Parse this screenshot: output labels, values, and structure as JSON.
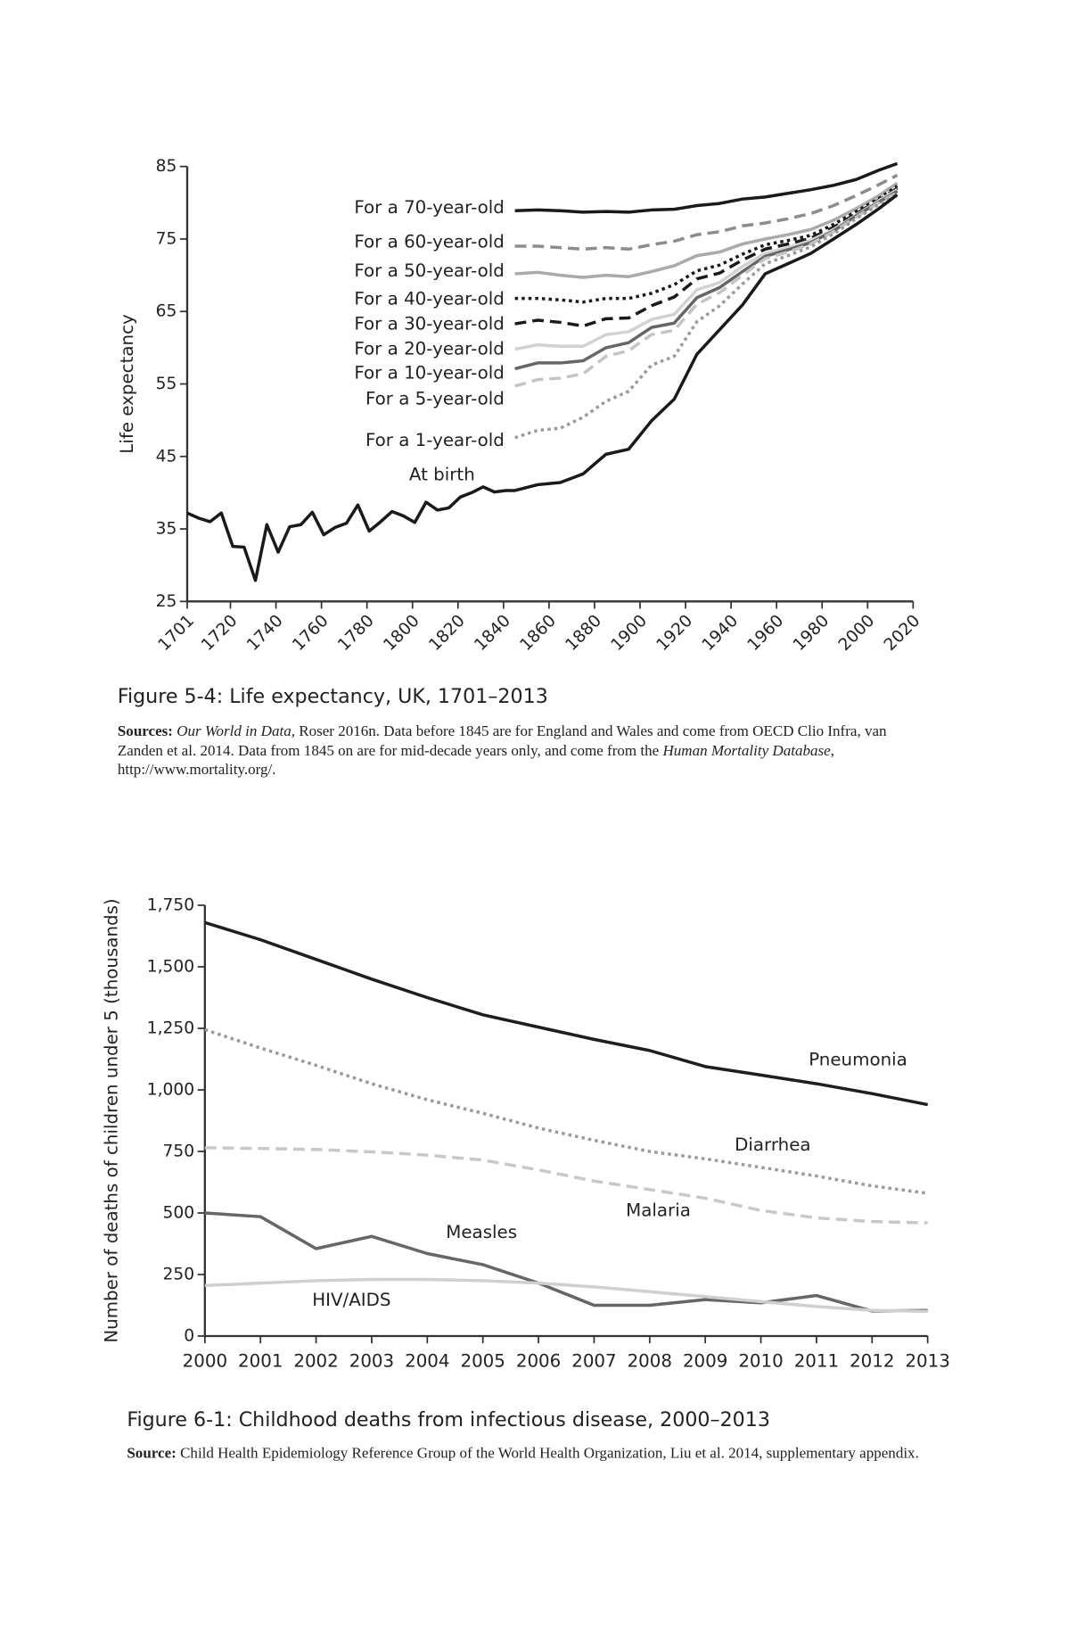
{
  "chart_data": [
    {
      "type": "line",
      "caption": "Figure 5-4: Life expectancy, UK, 1701–2013",
      "notes": [
        {
          "text": "Sources:",
          "bold": true
        },
        {
          "text": " Our World in Data,",
          "italic": true
        },
        {
          "text": " Roser 2016n. Data before 1845 are for England and Wales and come from OECD Clio Infra, van Zanden et al. 2014. Data from 1845 on are for mid-decade years only, and come from the "
        },
        {
          "text": "Human Mortality Database",
          "italic": true
        },
        {
          "text": ", http://www.mortality.org/."
        }
      ],
      "ylabel": "Life expectancy",
      "xlim": [
        1701,
        2020
      ],
      "xticks": [
        1701,
        1720,
        1740,
        1760,
        1780,
        1800,
        1820,
        1840,
        1860,
        1880,
        1900,
        1920,
        1940,
        1960,
        1980,
        2000,
        2020
      ],
      "ylim": [
        25,
        85
      ],
      "yticks": [
        25,
        35,
        45,
        55,
        65,
        75,
        85
      ],
      "series": [
        {
          "name": "For a 70-year-old",
          "color": "#1a1a1a",
          "dash": "solid",
          "x": [
            1845,
            1855,
            1865,
            1875,
            1885,
            1895,
            1905,
            1915,
            1925,
            1935,
            1945,
            1955,
            1965,
            1975,
            1985,
            1995,
            2005,
            2013
          ],
          "values": [
            78.9,
            79.0,
            78.9,
            78.7,
            78.8,
            78.7,
            79.0,
            79.1,
            79.6,
            79.9,
            80.5,
            80.8,
            81.3,
            81.8,
            82.4,
            83.2,
            84.5,
            85.4
          ]
        },
        {
          "name": "For a 60-year-old",
          "color": "#8c8c8c",
          "dash": "dashed",
          "x": [
            1845,
            1855,
            1865,
            1875,
            1885,
            1895,
            1905,
            1915,
            1925,
            1935,
            1945,
            1955,
            1965,
            1975,
            1985,
            1995,
            2005,
            2013
          ],
          "values": [
            74.0,
            74.0,
            73.8,
            73.6,
            73.8,
            73.6,
            74.2,
            74.7,
            75.6,
            76.0,
            76.8,
            77.2,
            77.8,
            78.5,
            79.6,
            81.0,
            82.5,
            83.8
          ]
        },
        {
          "name": "For a 50-year-old",
          "color": "#aaaaaa",
          "dash": "solid",
          "x": [
            1845,
            1855,
            1865,
            1875,
            1885,
            1895,
            1905,
            1915,
            1925,
            1935,
            1945,
            1955,
            1965,
            1975,
            1985,
            1995,
            2005,
            2013
          ],
          "values": [
            70.2,
            70.4,
            70.0,
            69.7,
            70.0,
            69.8,
            70.5,
            71.3,
            72.7,
            73.2,
            74.3,
            75.0,
            75.6,
            76.3,
            77.6,
            79.2,
            81.0,
            82.7
          ]
        },
        {
          "name": "For a 40-year-old",
          "color": "#1a1a1a",
          "dash": "dotted",
          "x": [
            1845,
            1855,
            1865,
            1875,
            1885,
            1895,
            1905,
            1915,
            1925,
            1935,
            1945,
            1955,
            1965,
            1975,
            1985,
            1995,
            2005,
            2013
          ],
          "values": [
            66.8,
            66.8,
            66.6,
            66.3,
            66.8,
            66.8,
            67.5,
            68.7,
            70.6,
            71.4,
            72.9,
            74.2,
            74.8,
            75.5,
            77.0,
            78.8,
            80.6,
            82.3
          ]
        },
        {
          "name": "For a 30-year-old",
          "color": "#1a1a1a",
          "dash": "dashed",
          "x": [
            1845,
            1855,
            1865,
            1875,
            1885,
            1895,
            1905,
            1915,
            1925,
            1935,
            1945,
            1955,
            1965,
            1975,
            1985,
            1995,
            2005,
            2013
          ],
          "values": [
            63.3,
            63.8,
            63.5,
            63.0,
            64.0,
            64.1,
            65.8,
            67.0,
            69.5,
            70.3,
            72.1,
            73.6,
            74.3,
            75.1,
            76.6,
            78.5,
            80.4,
            82.0
          ]
        },
        {
          "name": "For a 20-year-old",
          "color": "#d2d2d2",
          "dash": "solid",
          "x": [
            1845,
            1855,
            1865,
            1875,
            1885,
            1895,
            1905,
            1915,
            1925,
            1935,
            1945,
            1955,
            1965,
            1975,
            1985,
            1995,
            2005,
            2013
          ],
          "values": [
            59.8,
            60.4,
            60.2,
            60.2,
            61.8,
            62.2,
            63.9,
            64.6,
            68.0,
            69.0,
            71.2,
            73.0,
            73.8,
            74.8,
            76.3,
            78.3,
            80.3,
            81.8
          ]
        },
        {
          "name": "For a 10-year-old",
          "color": "#666666",
          "dash": "solid",
          "x": [
            1845,
            1855,
            1865,
            1875,
            1885,
            1895,
            1905,
            1915,
            1925,
            1935,
            1945,
            1955,
            1965,
            1975,
            1985,
            1995,
            2005,
            2013
          ],
          "values": [
            57.1,
            57.9,
            57.9,
            58.2,
            60.0,
            60.7,
            62.8,
            63.4,
            66.9,
            68.3,
            70.5,
            72.6,
            73.5,
            74.5,
            76.1,
            78.2,
            80.1,
            81.6
          ]
        },
        {
          "name": "For a 5-year-old",
          "color": "#c4c4c4",
          "dash": "dashed",
          "x": [
            1845,
            1855,
            1865,
            1875,
            1885,
            1895,
            1905,
            1915,
            1925,
            1935,
            1945,
            1955,
            1965,
            1975,
            1985,
            1995,
            2005,
            2013
          ],
          "values": [
            54.7,
            55.6,
            55.8,
            56.4,
            58.8,
            59.6,
            61.8,
            62.4,
            66.0,
            67.6,
            70.0,
            72.3,
            73.2,
            74.3,
            76.0,
            78.0,
            80.0,
            81.4
          ]
        },
        {
          "name": "For a 1-year-old",
          "color": "#9a9a9a",
          "dash": "dotted",
          "x": [
            1845,
            1855,
            1865,
            1875,
            1885,
            1895,
            1905,
            1915,
            1925,
            1935,
            1945,
            1955,
            1965,
            1975,
            1985,
            1995,
            2005,
            2013
          ],
          "values": [
            47.6,
            48.6,
            48.9,
            50.4,
            52.6,
            54.0,
            57.6,
            58.8,
            63.6,
            65.8,
            68.8,
            71.6,
            72.7,
            73.9,
            75.7,
            77.8,
            79.8,
            81.2
          ]
        },
        {
          "name": "At birth",
          "color": "#1a1a1a",
          "dash": "solid",
          "x": [
            1701,
            1706,
            1711,
            1716,
            1721,
            1726,
            1731,
            1736,
            1741,
            1746,
            1751,
            1756,
            1761,
            1766,
            1771,
            1776,
            1781,
            1786,
            1791,
            1796,
            1801,
            1806,
            1811,
            1816,
            1821,
            1826,
            1831,
            1836,
            1841,
            1845,
            1855,
            1865,
            1875,
            1885,
            1895,
            1905,
            1915,
            1925,
            1935,
            1945,
            1955,
            1965,
            1975,
            1985,
            1995,
            2005,
            2013
          ],
          "values": [
            37.2,
            36.5,
            36.0,
            37.2,
            32.6,
            32.5,
            27.9,
            35.6,
            31.8,
            35.3,
            35.6,
            37.3,
            34.2,
            35.2,
            35.8,
            38.3,
            34.7,
            36.0,
            37.4,
            36.8,
            35.9,
            38.7,
            37.6,
            37.9,
            39.4,
            40.0,
            40.8,
            40.1,
            40.3,
            40.3,
            41.1,
            41.4,
            42.6,
            45.3,
            46.0,
            49.9,
            52.9,
            59.1,
            62.5,
            65.9,
            70.2,
            71.6,
            73.0,
            75.0,
            77.0,
            79.2,
            81.1
          ]
        }
      ]
    },
    {
      "type": "line",
      "caption": "Figure 6-1: Childhood deaths from infectious disease, 2000–2013",
      "notes": [
        {
          "text": "Source:",
          "bold": true
        },
        {
          "text": " Child Health Epidemiology Reference Group of the World Health Organization, Liu et al. 2014, supplementary appendix."
        }
      ],
      "ylabel": "Number of deaths of children under 5 (thousands)",
      "x": [
        2000,
        2001,
        2002,
        2003,
        2004,
        2005,
        2006,
        2007,
        2008,
        2009,
        2010,
        2011,
        2012,
        2013
      ],
      "xlim": [
        2000,
        2013
      ],
      "xticks": [
        2000,
        2001,
        2002,
        2003,
        2004,
        2005,
        2006,
        2007,
        2008,
        2009,
        2010,
        2011,
        2012,
        2013
      ],
      "ylim": [
        0,
        1750
      ],
      "yticks": [
        0,
        250,
        500,
        750,
        {
          "value": 1000,
          "label": "1,000"
        },
        {
          "value": 1250,
          "label": "1,250"
        },
        {
          "value": 1500,
          "label": "1,500"
        },
        {
          "value": 1750,
          "label": "1,750"
        }
      ],
      "series": [
        {
          "name": "Pneumonia",
          "color": "#1e1e1e",
          "dash": "solid",
          "values": [
            1680,
            1610,
            1530,
            1450,
            1375,
            1305,
            1255,
            1205,
            1160,
            1095,
            1060,
            1025,
            985,
            940
          ]
        },
        {
          "name": "Diarrhea",
          "color": "#9a9a9a",
          "dash": "dotted",
          "values": [
            1245,
            1170,
            1100,
            1025,
            960,
            905,
            845,
            795,
            750,
            720,
            685,
            650,
            610,
            580
          ]
        },
        {
          "name": "Malaria",
          "color": "#c8c8c8",
          "dash": "dashed",
          "values": [
            765,
            762,
            758,
            748,
            735,
            715,
            675,
            630,
            595,
            560,
            510,
            480,
            465,
            460
          ]
        },
        {
          "name": "Measles",
          "color": "#666666",
          "dash": "solid",
          "values": [
            500,
            485,
            355,
            405,
            335,
            290,
            215,
            125,
            125,
            148,
            135,
            165,
            102,
            104
          ]
        },
        {
          "name": "HIV/AIDS",
          "color": "#cfcfcf",
          "dash": "solid",
          "values": [
            205,
            215,
            225,
            230,
            230,
            225,
            215,
            200,
            180,
            160,
            140,
            120,
            105,
            100
          ]
        }
      ]
    }
  ]
}
